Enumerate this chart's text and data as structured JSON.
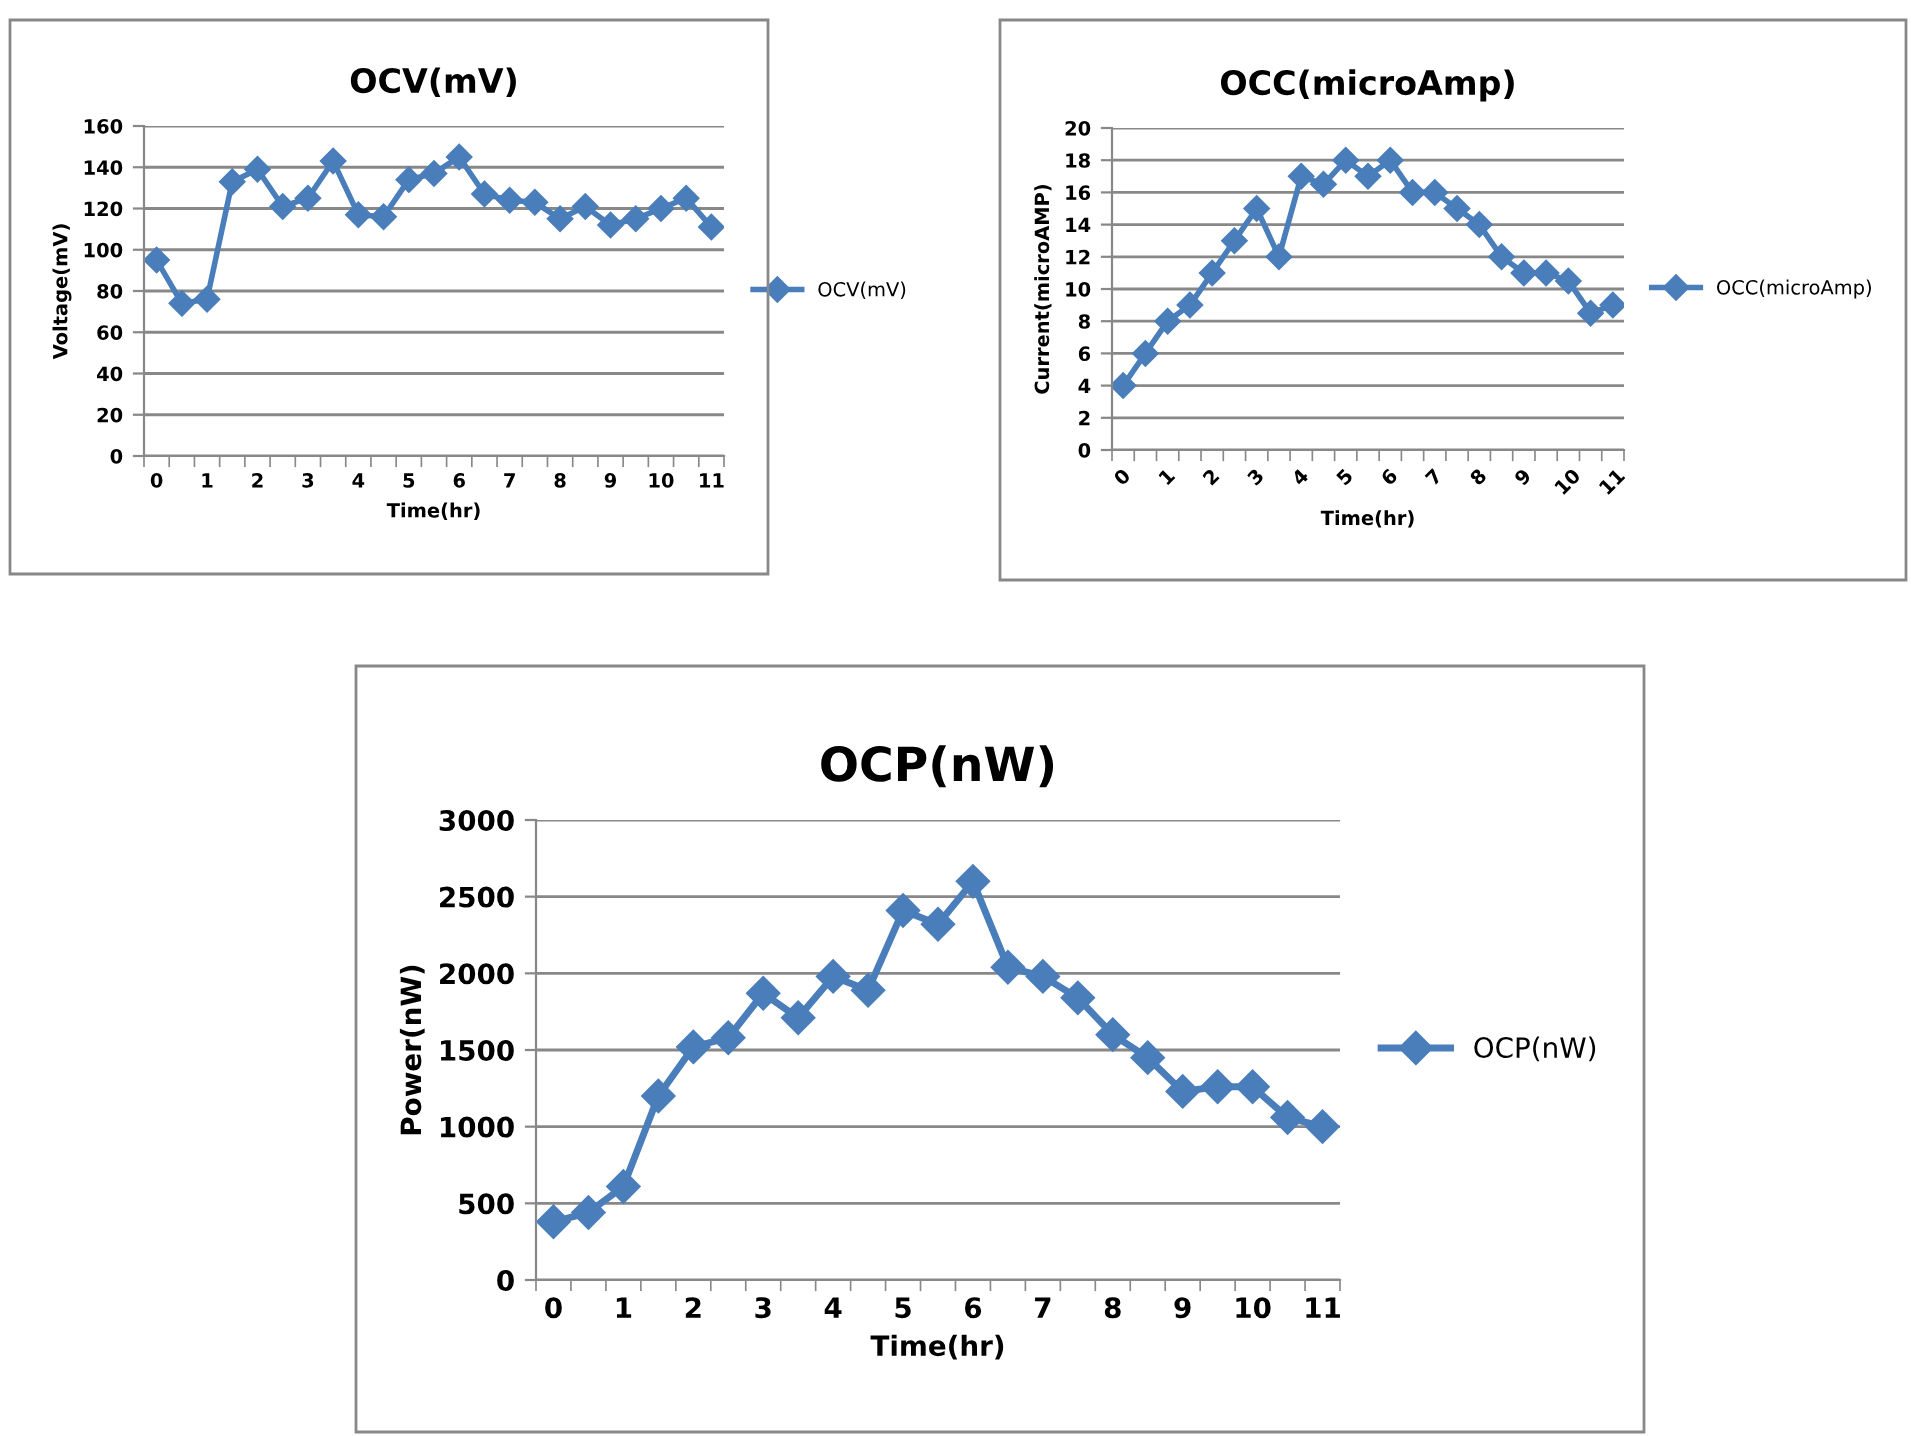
{
  "chart_data": [
    {
      "type": "line",
      "title": "OCV(mV)",
      "xlabel": "Time(hr)",
      "ylabel": "Voltage(mV)",
      "categories": [
        "0",
        null,
        "1",
        null,
        "2",
        null,
        "3",
        null,
        "4",
        null,
        "5",
        null,
        "6",
        null,
        "7",
        null,
        "8",
        null,
        "9",
        null,
        "10",
        null,
        "11"
      ],
      "series": [
        {
          "name": "OCV(mV)",
          "color": "#4a7ebb",
          "values": [
            95,
            74,
            76,
            133,
            139,
            121,
            125,
            143,
            117,
            116,
            134,
            137,
            145,
            127,
            124,
            123,
            115,
            121,
            112,
            115,
            120,
            125,
            111
          ]
        }
      ],
      "ylim": [
        0,
        160
      ],
      "yticks": [
        0,
        20,
        40,
        60,
        80,
        100,
        120,
        140,
        160
      ],
      "grid": "y",
      "legend": "right",
      "marker": "diamond",
      "line_style": "solid"
    },
    {
      "type": "line",
      "title": "OCC(microAmp)",
      "xlabel": "Time(hr)",
      "ylabel": "Current(microAMP)",
      "categories": [
        "0",
        null,
        "1",
        null,
        "2",
        null,
        "3",
        null,
        "4",
        null,
        "5",
        null,
        "6",
        null,
        "7",
        null,
        "8",
        null,
        "9",
        null,
        "10",
        null,
        "11"
      ],
      "series": [
        {
          "name": "OCC(microAmp)",
          "color": "#4a7ebb",
          "values": [
            4,
            6,
            8,
            9,
            11,
            13,
            15,
            12,
            17,
            16.5,
            18,
            17,
            18,
            16,
            16,
            15,
            14,
            12,
            11,
            11,
            10.5,
            8.5,
            9
          ]
        }
      ],
      "ylim": [
        0,
        20
      ],
      "yticks": [
        0,
        2,
        4,
        6,
        8,
        10,
        12,
        14,
        16,
        18,
        20
      ],
      "grid": "y",
      "legend": "right",
      "marker": "diamond",
      "line_style": "solid"
    },
    {
      "type": "line",
      "title": "OCP(nW)",
      "xlabel": "Time(hr)",
      "ylabel": "Power(nW)",
      "categories": [
        "0",
        null,
        "1",
        null,
        "2",
        null,
        "3",
        null,
        "4",
        null,
        "5",
        null,
        "6",
        null,
        "7",
        null,
        "8",
        null,
        "9",
        null,
        "10",
        null,
        "11"
      ],
      "series": [
        {
          "name": "OCP(nW)",
          "color": "#4a7ebb",
          "values": [
            380,
            440,
            610,
            1200,
            1520,
            1580,
            1870,
            1710,
            1980,
            1890,
            2410,
            2320,
            2600,
            2040,
            1980,
            1840,
            1600,
            1450,
            1230,
            1260,
            1260,
            1060,
            1000
          ]
        }
      ],
      "ylim": [
        0,
        3000
      ],
      "yticks": [
        0,
        500,
        1000,
        1500,
        2000,
        2500,
        3000
      ],
      "grid": "y",
      "legend": "right",
      "marker": "diamond",
      "line_style": "solid"
    }
  ]
}
